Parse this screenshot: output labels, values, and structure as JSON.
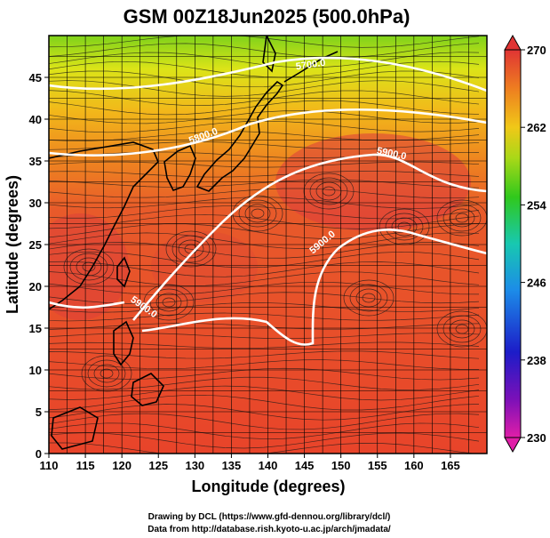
{
  "title": "GSM 00Z18Jun2025 (500.0hPa)",
  "x_axis": {
    "label": "Longitude (degrees)",
    "range": [
      110,
      170
    ],
    "ticks": [
      "110",
      "115",
      "120",
      "125",
      "130",
      "135",
      "140",
      "145",
      "150",
      "155",
      "160",
      "165"
    ]
  },
  "y_axis": {
    "label": "Latitude  (degrees)",
    "range": [
      0,
      50
    ],
    "ticks": [
      "0",
      "5",
      "10",
      "15",
      "20",
      "25",
      "30",
      "35",
      "40",
      "45"
    ]
  },
  "colorbar": {
    "min": 230,
    "max": 270,
    "tick_labels": [
      "230",
      "238",
      "246",
      "254",
      "262",
      "270"
    ]
  },
  "contours": [
    {
      "label": "5700.0",
      "level": 5700
    },
    {
      "label": "5800.0",
      "level": 5800
    },
    {
      "label": "5900.0",
      "level": 5900
    },
    {
      "label": "5900.0",
      "level": 5900
    },
    {
      "label": "5900.0",
      "level": 5900
    }
  ],
  "credits": [
    "Drawing by DCL (https://www.gfd-dennou.org/library/dcl/)",
    "Data from http://database.rish.kyoto-u.ac.jp/arch/jmadata/"
  ],
  "colors": {
    "warm": "#e8442a",
    "hot": "#d8303a",
    "orange": "#f08a1e",
    "yellow": "#e8dc14",
    "green": "#6ccf1e",
    "contour": "#ffffff"
  }
}
